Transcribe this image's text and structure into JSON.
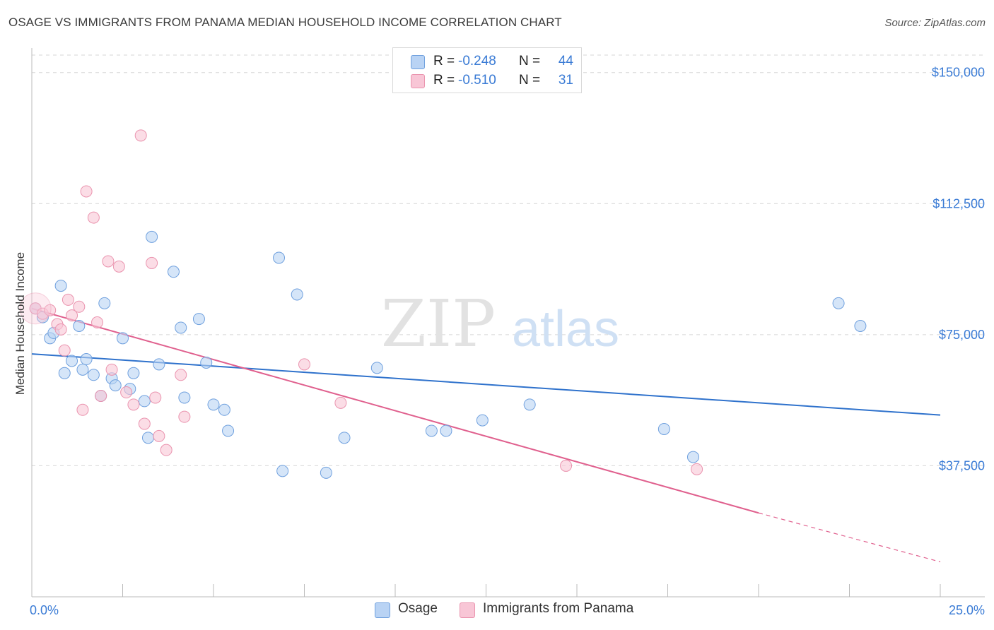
{
  "title": "OSAGE VS IMMIGRANTS FROM PANAMA MEDIAN HOUSEHOLD INCOME CORRELATION CHART",
  "source": "Source: ZipAtlas.com",
  "watermark": {
    "zip": "ZIP",
    "atlas": "atlas"
  },
  "legend_top": [
    {
      "r_label": "R =",
      "r_value": "-0.248",
      "n_label": "N =",
      "n_value": "44"
    },
    {
      "r_label": "R =",
      "r_value": "-0.510",
      "n_label": "N =",
      "n_value": "31"
    }
  ],
  "legend_bottom": [
    "Osage",
    "Immigrants from Panama"
  ],
  "colors": {
    "osage_fill": "#b9d3f4",
    "osage_stroke": "#6fa0de",
    "osage_line": "#2f72cc",
    "panama_fill": "#f8c6d6",
    "panama_stroke": "#ea93ae",
    "panama_line": "#e0608e",
    "grid": "#d6d6d6",
    "axis_label": "#3a7bd5"
  },
  "chart_data": {
    "type": "scatter",
    "xlabel": "",
    "ylabel": "Median Household Income",
    "xlim": [
      0,
      25
    ],
    "ylim": [
      0,
      155000
    ],
    "x_tick_labels": [
      "0.0%",
      "25.0%"
    ],
    "y_ticks": [
      37500,
      75000,
      112500,
      150000
    ],
    "y_tick_labels": [
      "$37,500",
      "$75,000",
      "$112,500",
      "$150,000"
    ],
    "grid": true,
    "legend": "top-center",
    "series": [
      {
        "name": "Osage",
        "points": [
          [
            0.1,
            82500
          ],
          [
            0.3,
            80000
          ],
          [
            0.5,
            74000
          ],
          [
            0.6,
            75500
          ],
          [
            0.8,
            89000
          ],
          [
            0.9,
            64000
          ],
          [
            1.1,
            67500
          ],
          [
            1.4,
            65000
          ],
          [
            1.3,
            77500
          ],
          [
            1.5,
            68000
          ],
          [
            1.7,
            63500
          ],
          [
            1.9,
            57500
          ],
          [
            2.0,
            84000
          ],
          [
            2.2,
            62500
          ],
          [
            2.3,
            60500
          ],
          [
            2.5,
            74000
          ],
          [
            2.7,
            59500
          ],
          [
            2.8,
            64000
          ],
          [
            3.1,
            56000
          ],
          [
            3.2,
            45500
          ],
          [
            3.3,
            103000
          ],
          [
            3.5,
            66500
          ],
          [
            3.9,
            93000
          ],
          [
            4.1,
            77000
          ],
          [
            4.2,
            57000
          ],
          [
            4.6,
            79500
          ],
          [
            4.8,
            67000
          ],
          [
            5.0,
            55000
          ],
          [
            5.3,
            53500
          ],
          [
            5.4,
            47500
          ],
          [
            6.8,
            97000
          ],
          [
            6.9,
            36000
          ],
          [
            7.3,
            86500
          ],
          [
            8.1,
            35500
          ],
          [
            8.6,
            45500
          ],
          [
            9.5,
            65500
          ],
          [
            11.0,
            47500
          ],
          [
            11.4,
            47500
          ],
          [
            12.4,
            50500
          ],
          [
            13.7,
            55000
          ],
          [
            17.4,
            48000
          ],
          [
            18.2,
            40000
          ],
          [
            22.2,
            84000
          ],
          [
            22.8,
            77500
          ]
        ]
      },
      {
        "name": "Immigrants from Panama",
        "points": [
          [
            0.1,
            82500
          ],
          [
            0.3,
            81000
          ],
          [
            0.5,
            82000
          ],
          [
            0.7,
            78000
          ],
          [
            0.8,
            76500
          ],
          [
            0.9,
            70500
          ],
          [
            1.0,
            85000
          ],
          [
            1.1,
            80500
          ],
          [
            1.3,
            83000
          ],
          [
            1.4,
            53500
          ],
          [
            1.5,
            116000
          ],
          [
            1.7,
            108500
          ],
          [
            1.8,
            78500
          ],
          [
            1.9,
            57500
          ],
          [
            2.1,
            96000
          ],
          [
            2.2,
            65000
          ],
          [
            2.4,
            94500
          ],
          [
            2.6,
            58500
          ],
          [
            2.8,
            55000
          ],
          [
            3.0,
            132000
          ],
          [
            3.1,
            49500
          ],
          [
            3.3,
            95500
          ],
          [
            3.5,
            46000
          ],
          [
            3.7,
            42000
          ],
          [
            4.1,
            63500
          ],
          [
            4.2,
            51500
          ],
          [
            7.5,
            66500
          ],
          [
            8.5,
            55500
          ],
          [
            14.7,
            37500
          ],
          [
            18.3,
            36500
          ],
          [
            3.4,
            57000
          ]
        ]
      }
    ],
    "trend_lines": [
      {
        "name": "Osage",
        "x": [
          0,
          25
        ],
        "y": [
          69500,
          52000
        ]
      },
      {
        "name": "Immigrants from Panama",
        "x": [
          0,
          20
        ],
        "y": [
          82500,
          24000
        ],
        "dashed_extension_to": [
          25,
          10000
        ]
      }
    ]
  }
}
